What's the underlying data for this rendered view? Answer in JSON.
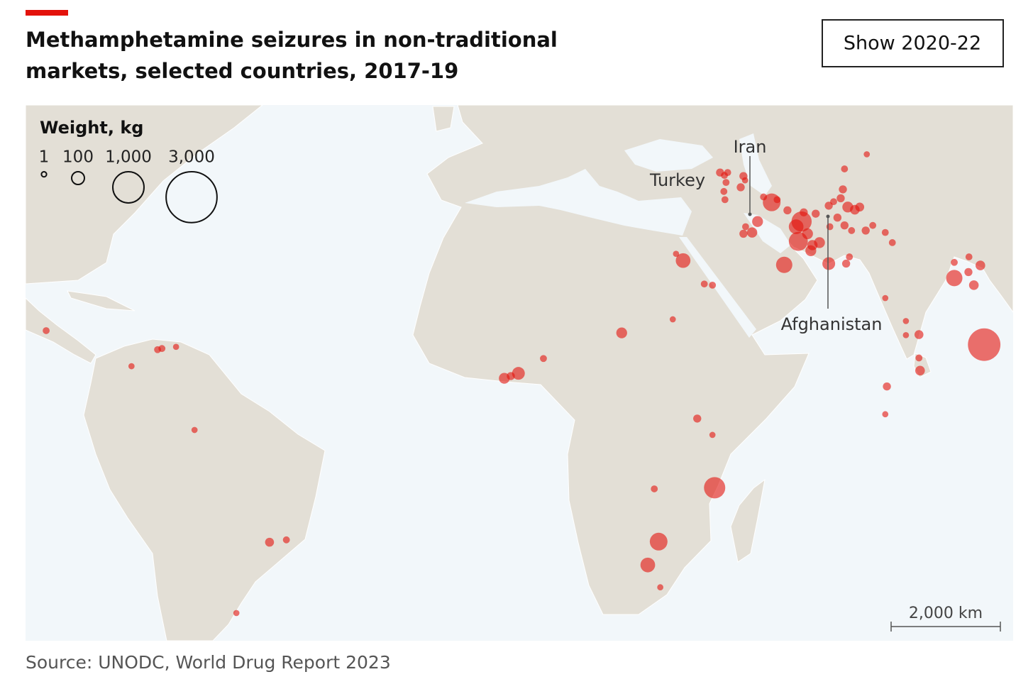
{
  "chart_data": {
    "type": "bubble-map",
    "title_line1": "Methamphetamine seizures in non-traditional",
    "title_line2": "markets, selected countries, 2017-19",
    "button": "Show 2020-22",
    "legend_title": "Weight, kg",
    "legend_sizes": [
      1,
      100,
      {
        "value": 1000,
        "label": "1,000"
      },
      {
        "value": 3000,
        "label": "3,000"
      }
    ],
    "annotations": [
      "Turkey",
      "Iran",
      "Afghanistan"
    ],
    "scale_bar": "2,000 km",
    "source": "Source: UNODC, World Drug Report 2023",
    "bubble_color": "#e3120b",
    "lon": [
      -80.8,
      -65.1,
      -60.3,
      -59.5,
      -56.9,
      -53.5,
      -39.7,
      -36.6,
      -45.8,
      3.5,
      4.7,
      6.1,
      10.7,
      25.1,
      34.5,
      36.4,
      35.1,
      40.3,
      41.8,
      39.0,
      41.8,
      42.2,
      31.1,
      31.9,
      29.9,
      32.2,
      43.2,
      44.0,
      44.6,
      47.5,
      47.0,
      47.8,
      43.9,
      44.3,
      44.1,
      52.7,
      51.2,
      50.1,
      49.1,
      47.5,
      47.9,
      53.7,
      55.6,
      58.2,
      57.2,
      57.6,
      59.3,
      58.6,
      60.8,
      60.2,
      61.5,
      55.0,
      59.9,
      63.2,
      63.2,
      64.1,
      65.4,
      65.8,
      66.7,
      68.0,
      68.9,
      64.8,
      66.1,
      63.4,
      67.4,
      70.0,
      71.3,
      73.6,
      74.9,
      66.4,
      67.0,
      70.2,
      66.1,
      73.6,
      79.8,
      77.4,
      80.0,
      79.8,
      73.9,
      73.6,
      77.4,
      86.3,
      86.3,
      89.0,
      91.1,
      89.9,
      88.9,
      91.8
    ],
    "lat": [
      15.1,
      8.7,
      11.7,
      11.9,
      12.2,
      -3.0,
      -23.0,
      -22.6,
      -34.4,
      6.5,
      6.9,
      7.4,
      10.1,
      14.7,
      17.1,
      27.1,
      28.2,
      23.2,
      23.0,
      -0.9,
      -3.9,
      -13.5,
      -13.7,
      -22.9,
      -26.8,
      -30.4,
      40.5,
      40.1,
      40.5,
      40.0,
      38.4,
      39.4,
      37.8,
      39.1,
      36.6,
      36.2,
      37.0,
      33.3,
      31.6,
      31.4,
      32.5,
      36.6,
      35.0,
      33.3,
      32.5,
      30.2,
      31.4,
      34.7,
      34.5,
      29.6,
      30.0,
      26.4,
      28.7,
      26.6,
      35.7,
      36.3,
      36.8,
      38.1,
      35.5,
      35.1,
      35.5,
      33.9,
      32.7,
      32.5,
      31.9,
      31.9,
      32.7,
      31.6,
      30.0,
      26.6,
      27.7,
      43.0,
      41.0,
      20.8,
      14.4,
      14.3,
      7.9,
      10.2,
      5.0,
      -0.1,
      16.8,
      24.2,
      26.8,
      27.7,
      26.3,
      23.0,
      25.2,
      12.6
    ],
    "values": [
      10,
      5,
      10,
      10,
      5,
      5,
      30,
      10,
      5,
      60,
      20,
      100,
      10,
      60,
      5,
      150,
      5,
      10,
      10,
      20,
      5,
      400,
      10,
      250,
      150,
      5,
      20,
      10,
      10,
      20,
      20,
      5,
      10,
      10,
      10,
      250,
      10,
      60,
      50,
      20,
      10,
      10,
      20,
      350,
      150,
      300,
      60,
      20,
      20,
      50,
      60,
      200,
      60,
      100,
      20,
      10,
      20,
      20,
      60,
      40,
      30,
      20,
      20,
      10,
      10,
      20,
      10,
      10,
      10,
      20,
      10,
      5,
      10,
      5,
      30,
      5,
      40,
      10,
      20,
      5,
      5,
      200,
      10,
      10,
      40,
      40,
      20,
      1100
    ]
  }
}
